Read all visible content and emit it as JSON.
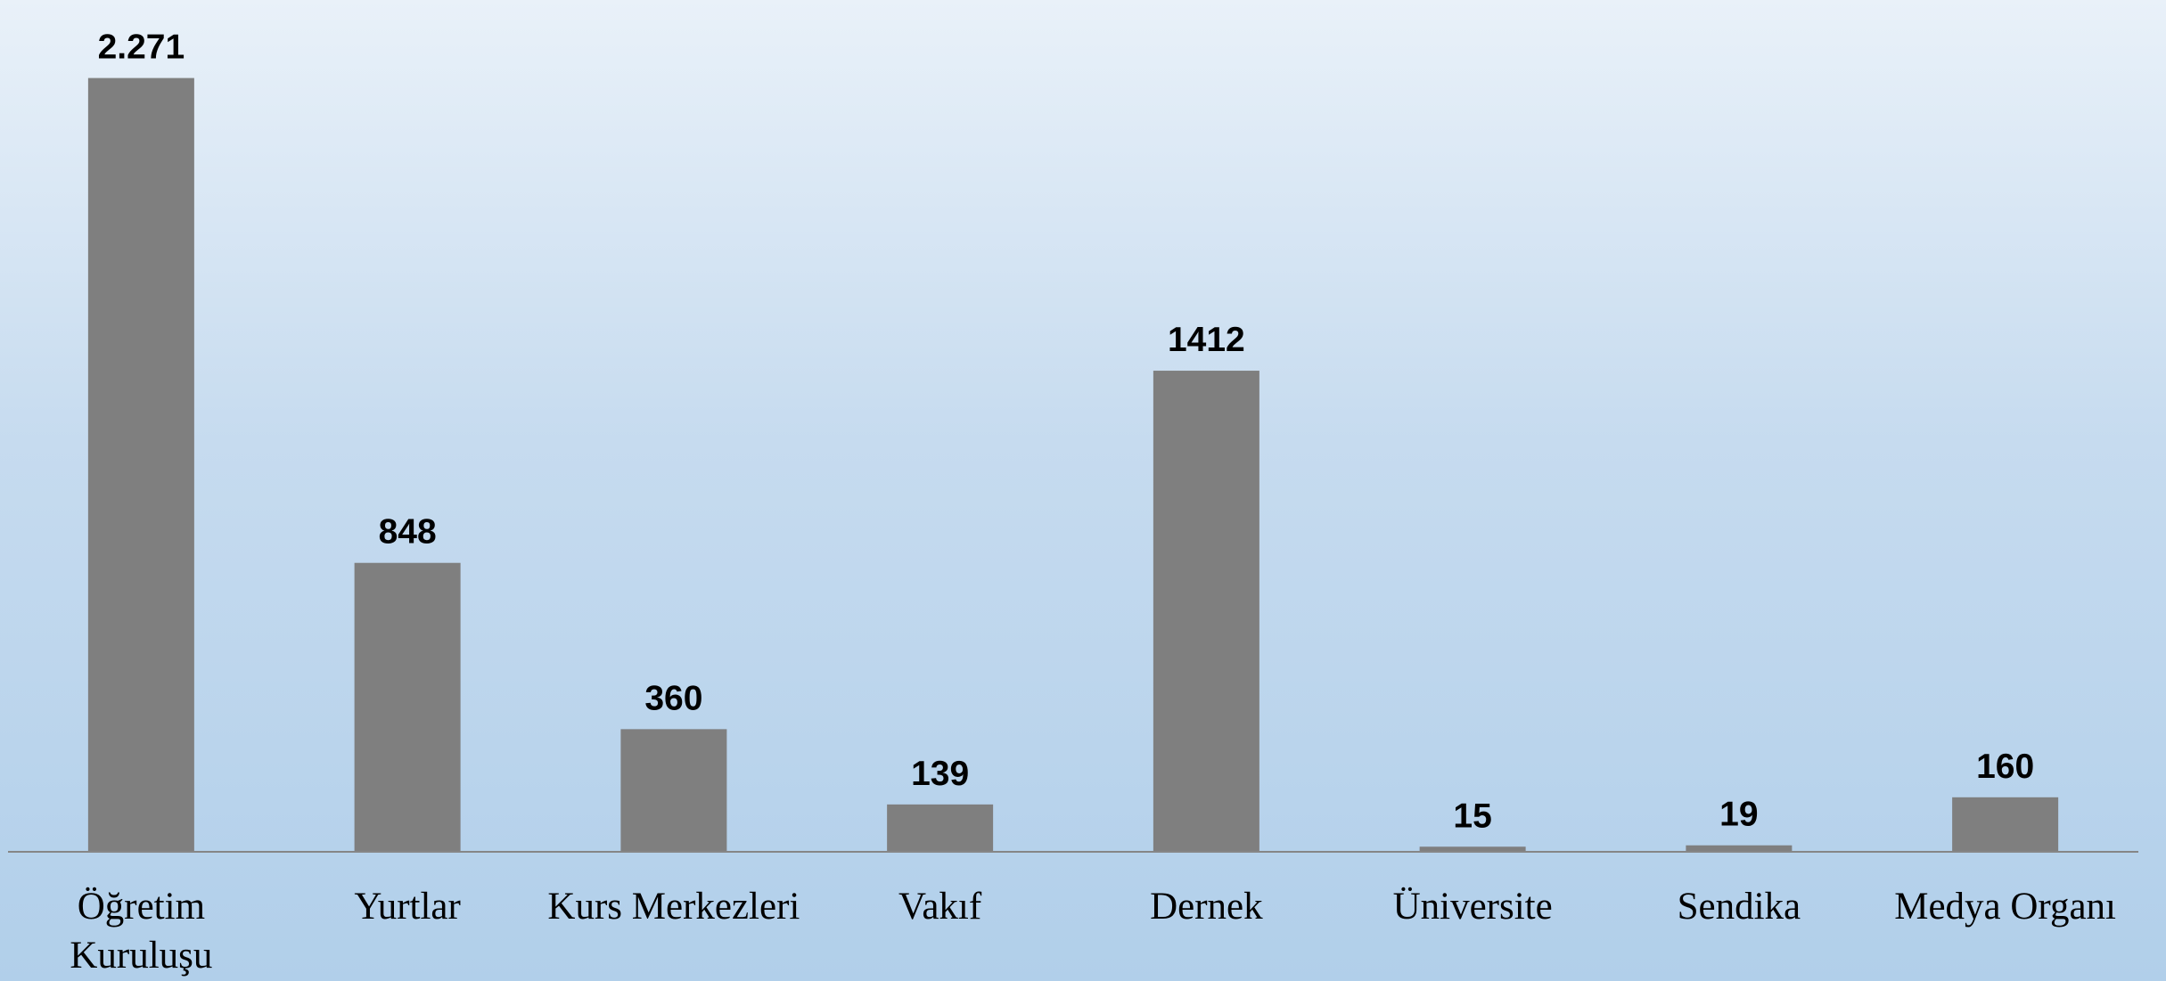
{
  "chart_data": {
    "type": "bar",
    "categories": [
      "Öğretim Kuruluşu",
      "Yurtlar",
      "Kurs Merkezleri",
      "Vakıf",
      "Dernek",
      "Üniversite",
      "Sendika",
      "Medya Organı"
    ],
    "values": [
      2271,
      848,
      360,
      139,
      1412,
      15,
      19,
      160
    ],
    "value_labels": [
      "2.271",
      "848",
      "360",
      "139",
      "1412",
      "15",
      "19",
      "160"
    ],
    "color": "#7f7f7f",
    "ylim": [
      0,
      2500
    ]
  }
}
